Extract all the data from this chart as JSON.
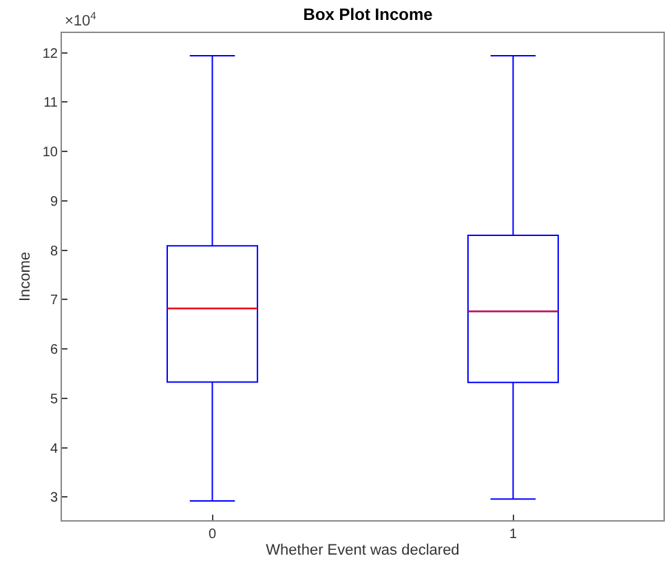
{
  "chart_data": {
    "type": "box",
    "title": "Box Plot Income",
    "xlabel": "Whether Event was declared",
    "ylabel": "Income",
    "annotations": [
      "×10$^{4}$"
    ],
    "categories": [
      "0",
      "1"
    ],
    "series": [
      {
        "color": "#0000ff",
        "boxes": [
          {
            "low": 2.92,
            "q1": 5.33,
            "median": 6.82,
            "q3": 8.09,
            "high": 11.94
          },
          {
            "low": 2.96,
            "q1": 5.32,
            "median": 6.76,
            "q3": 8.3,
            "high": 11.94
          }
        ]
      }
    ],
    "ylim": [
      2.53,
      12.4
    ],
    "yticks": [
      3,
      4,
      5,
      6,
      7,
      8,
      9,
      10,
      11,
      12
    ],
    "grid": false
  }
}
